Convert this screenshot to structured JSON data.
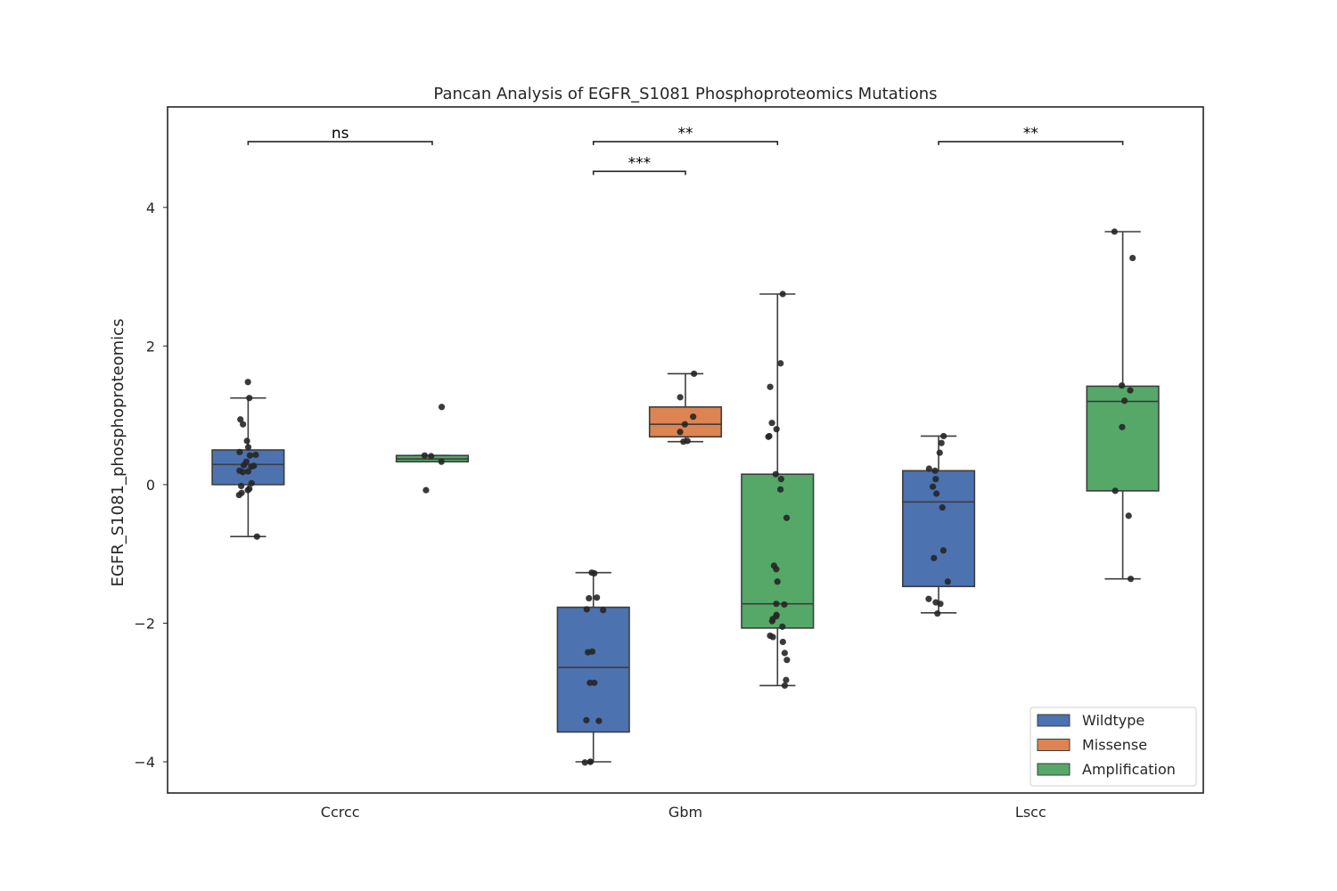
{
  "chart_data": {
    "type": "box",
    "title": "Pancan Analysis of EGFR_S1081 Phosphoproteomics Mutations",
    "xlabel": "",
    "ylabel": "EGFR_S1081_phosphoproteomics",
    "ylim": [
      -4.45,
      5.45
    ],
    "yticks": [
      -4,
      -2,
      0,
      2,
      4
    ],
    "ytick_labels": [
      "−4",
      "−2",
      "0",
      "2",
      "4"
    ],
    "categories": [
      "Ccrcc",
      "Gbm",
      "Lscc"
    ],
    "grid": false,
    "legend": {
      "placement": "lower-right",
      "entries": [
        {
          "name": "Wildtype",
          "color": "#4c72b0"
        },
        {
          "name": "Missense",
          "color": "#dd8452"
        },
        {
          "name": "Amplification",
          "color": "#55a868"
        }
      ]
    },
    "hue_order": [
      "Wildtype",
      "Missense",
      "Amplification"
    ],
    "boxes": [
      {
        "category": "Ccrcc",
        "hue": "Wildtype",
        "whisker_low": -0.75,
        "q1": 0.0,
        "median": 0.29,
        "q3": 0.5,
        "whisker_high": 1.25,
        "points": [
          1.48,
          1.25,
          0.94,
          0.87,
          0.63,
          0.54,
          0.47,
          0.43,
          0.42,
          0.33,
          0.28,
          0.27,
          0.26,
          0.2,
          0.19,
          0.18,
          0.02,
          -0.02,
          -0.06,
          -0.08,
          -0.12,
          -0.15,
          -0.75
        ]
      },
      {
        "category": "Ccrcc",
        "hue": "Amplification",
        "whisker_low": 0.33,
        "q1": 0.33,
        "median": 0.37,
        "q3": 0.42,
        "whisker_high": 0.42,
        "points": [
          1.12,
          0.42,
          0.41,
          0.33,
          -0.08
        ]
      },
      {
        "category": "Gbm",
        "hue": "Wildtype",
        "whisker_low": -4.0,
        "q1": -3.57,
        "median": -2.64,
        "q3": -1.77,
        "whisker_high": -1.27,
        "points": [
          -1.27,
          -1.28,
          -1.63,
          -1.64,
          -1.8,
          -1.81,
          -2.41,
          -2.42,
          -2.86,
          -2.86,
          -3.4,
          -3.41,
          -4.0,
          -4.0,
          -4.01
        ]
      },
      {
        "category": "Gbm",
        "hue": "Missense",
        "whisker_low": 0.62,
        "q1": 0.69,
        "median": 0.87,
        "q3": 1.12,
        "whisker_high": 1.6,
        "points": [
          1.6,
          1.26,
          0.98,
          0.87,
          0.76,
          0.63,
          0.62
        ]
      },
      {
        "category": "Gbm",
        "hue": "Amplification",
        "whisker_low": -2.9,
        "q1": -2.07,
        "median": -1.72,
        "q3": 0.15,
        "whisker_high": 2.75,
        "points": [
          2.75,
          1.75,
          1.41,
          0.89,
          0.8,
          0.7,
          0.69,
          0.15,
          0.08,
          -0.07,
          -0.48,
          -1.17,
          -1.22,
          -1.4,
          -1.72,
          -1.73,
          -1.88,
          -1.9,
          -1.94,
          -1.97,
          -2.05,
          -2.18,
          -2.2,
          -2.27,
          -2.43,
          -2.53,
          -2.82,
          -2.9
        ]
      },
      {
        "category": "Lscc",
        "hue": "Wildtype",
        "whisker_low": -1.85,
        "q1": -1.47,
        "median": -0.25,
        "q3": 0.2,
        "whisker_high": 0.7,
        "points": [
          0.7,
          0.6,
          0.46,
          0.23,
          0.2,
          0.08,
          -0.03,
          -0.13,
          -0.33,
          -0.95,
          -1.06,
          -1.4,
          -1.65,
          -1.7,
          -1.72,
          -1.86
        ]
      },
      {
        "category": "Lscc",
        "hue": "Amplification",
        "whisker_low": -1.36,
        "q1": -0.09,
        "median": 1.2,
        "q3": 1.42,
        "whisker_high": 3.65,
        "points": [
          3.65,
          3.27,
          1.43,
          1.36,
          1.21,
          0.83,
          -0.09,
          -0.45,
          -1.36
        ]
      }
    ],
    "annotations": [
      {
        "text": "ns",
        "category": "Ccrcc",
        "from": "Wildtype",
        "to": "Amplification",
        "y": 4.95
      },
      {
        "text": "**",
        "category": "Gbm",
        "from": "Wildtype",
        "to": "Amplification",
        "y": 4.95
      },
      {
        "text": "***",
        "category": "Gbm",
        "from": "Wildtype",
        "to": "Missense",
        "y": 4.52
      },
      {
        "text": "**",
        "category": "Lscc",
        "from": "Wildtype",
        "to": "Amplification",
        "y": 4.95
      }
    ]
  }
}
